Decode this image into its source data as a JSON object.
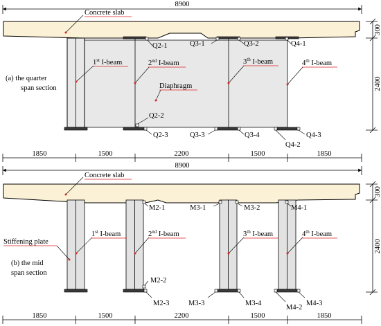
{
  "diagram": {
    "top": {
      "total_width": "8900",
      "slab_label": "Concrete slab",
      "section_label_line1": "(a) the quarter",
      "section_label_line2": "span section",
      "diaphragm_label": "Diaphragm",
      "beams": [
        {
          "n": "1",
          "sup": "st",
          "suffix": " I-beam"
        },
        {
          "n": "2",
          "sup": "nd",
          "suffix": " I-beam"
        },
        {
          "n": "3",
          "sup": "th",
          "suffix": " I-beam"
        },
        {
          "n": "4",
          "sup": "th",
          "suffix": " I-beam"
        }
      ],
      "gauges": [
        "Q2-1",
        "Q3-1",
        "Q3-2",
        "Q4-1",
        "Q2-2",
        "Q2-3",
        "Q3-3",
        "Q3-4",
        "Q4-2",
        "Q4-3"
      ],
      "slab_depth": "300",
      "beam_depth": "2400",
      "spacings": [
        "1850",
        "1500",
        "2200",
        "1500",
        "1850"
      ]
    },
    "bottom": {
      "total_width": "8900",
      "slab_label": "Concrete slab",
      "section_label_line1": "(b) the mid",
      "section_label_line2": "span section",
      "stiffening_label": "Stiffening plate",
      "beams": [
        {
          "n": "1",
          "sup": "st",
          "suffix": " I-beam"
        },
        {
          "n": "2",
          "sup": "nd",
          "suffix": " I-beam"
        },
        {
          "n": "3",
          "sup": "th",
          "suffix": " I-beam"
        },
        {
          "n": "4",
          "sup": "th",
          "suffix": " I-beam"
        }
      ],
      "gauges": [
        "M2-1",
        "M3-1",
        "M3-2",
        "M4-1",
        "M2-2",
        "M2-3",
        "M3-3",
        "M3-4",
        "M4-2",
        "M4-3"
      ],
      "slab_depth": "300",
      "beam_depth": "2400",
      "spacings": [
        "1850",
        "1500",
        "2200",
        "1500",
        "1850"
      ]
    }
  }
}
